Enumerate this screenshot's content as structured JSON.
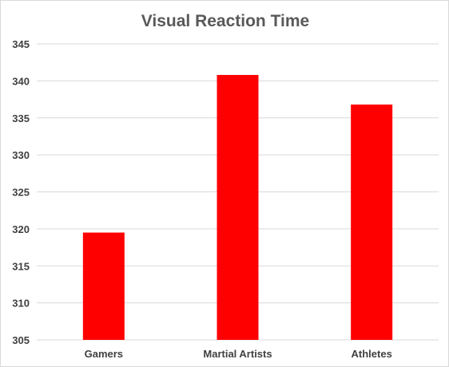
{
  "chart_data": {
    "type": "bar",
    "title": "Visual Reaction Time",
    "categories": [
      "Gamers",
      "Martial Artists",
      "Athletes"
    ],
    "values": [
      319.5,
      340.8,
      336.8
    ],
    "xlabel": "",
    "ylabel": "",
    "ylim": [
      305,
      345
    ],
    "yticks": [
      "305",
      "310",
      "315",
      "320",
      "325",
      "330",
      "335",
      "340",
      "345"
    ],
    "grid": true,
    "legend": "none",
    "bar_color": "#ff0000"
  }
}
